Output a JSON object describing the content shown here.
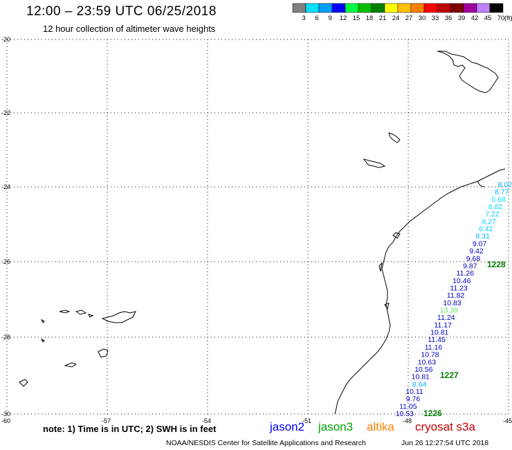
{
  "header": {
    "title": "12:00 – 23:59 UTC 06/25/2018",
    "subtitle": "12 hour collection of altimeter wave heights"
  },
  "legend": {
    "unit": "(ft)",
    "bins": [
      {
        "label": "3",
        "color": "#808080"
      },
      {
        "label": "6",
        "color": "#00e0ff"
      },
      {
        "label": "9",
        "color": "#00a0ff"
      },
      {
        "label": "12",
        "color": "#0000ff"
      },
      {
        "label": "15",
        "color": "#00ff40"
      },
      {
        "label": "18",
        "color": "#00c000"
      },
      {
        "label": "21",
        "color": "#008000"
      },
      {
        "label": "24",
        "color": "#ffff00"
      },
      {
        "label": "27",
        "color": "#ffc000"
      },
      {
        "label": "30",
        "color": "#ff8000"
      },
      {
        "label": "33",
        "color": "#ff0000"
      },
      {
        "label": "36",
        "color": "#c00000"
      },
      {
        "label": "39",
        "color": "#800000"
      },
      {
        "label": "42",
        "color": "#a000a0"
      },
      {
        "label": "45",
        "color": "#c080ff"
      },
      {
        "label": "70",
        "color": "#000000"
      }
    ]
  },
  "axes": {
    "lat_labels": [
      "-20",
      "-22",
      "-24",
      "-26",
      "-28",
      "-30"
    ],
    "lon_labels": [
      "-60",
      "-57",
      "-54",
      "-51",
      "-48",
      "-45"
    ]
  },
  "track_values": [
    {
      "text": "8.02",
      "color": "#00b0ff"
    },
    {
      "text": "8.77",
      "color": "#00b0ff"
    },
    {
      "text": "5.68",
      "color": "#00e0ff"
    },
    {
      "text": "6.82",
      "color": "#00e0ff"
    },
    {
      "text": "7.22",
      "color": "#00c8ff"
    },
    {
      "text": "6.27",
      "color": "#00c8ff"
    },
    {
      "text": "6.42",
      "color": "#00c8ff"
    },
    {
      "text": "8.31",
      "color": "#00b0ff"
    },
    {
      "text": "9.07",
      "color": "#0000c0"
    },
    {
      "text": "9.42",
      "color": "#0000c0"
    },
    {
      "text": "9.68",
      "color": "#0000c0"
    },
    {
      "text": "9.87",
      "color": "#0000c0"
    },
    {
      "text": "11.26",
      "color": "#0000c0"
    },
    {
      "text": "10.46",
      "color": "#0000c0"
    },
    {
      "text": "11.23",
      "color": "#0000c0"
    },
    {
      "text": "11.82",
      "color": "#0000c0"
    },
    {
      "text": "10.83",
      "color": "#0000c0"
    },
    {
      "text": "13.39",
      "color": "#60e060"
    },
    {
      "text": "11.24",
      "color": "#0000c0"
    },
    {
      "text": "11.17",
      "color": "#0000c0"
    },
    {
      "text": "10.81",
      "color": "#0000c0"
    },
    {
      "text": "11.45",
      "color": "#0000c0"
    },
    {
      "text": "11.16",
      "color": "#0000c0"
    },
    {
      "text": "10.78",
      "color": "#0000c0"
    },
    {
      "text": "10.63",
      "color": "#0000c0"
    },
    {
      "text": "10.56",
      "color": "#0000c0"
    },
    {
      "text": "10.81",
      "color": "#0000c0"
    },
    {
      "text": "8.64",
      "color": "#00b0ff"
    },
    {
      "text": "10.11",
      "color": "#0000c0"
    },
    {
      "text": "9.76",
      "color": "#0000c0"
    },
    {
      "text": "11.05",
      "color": "#0000c0"
    },
    {
      "text": "10.53",
      "color": "#0000c0"
    }
  ],
  "time_tags": [
    {
      "text": "1228",
      "color": "#008000"
    },
    {
      "text": "1227",
      "color": "#008000"
    },
    {
      "text": "1226",
      "color": "#008000"
    }
  ],
  "footer": {
    "note": "note: 1) Time is in UTC; 2) SWH is in feet",
    "satellites": [
      {
        "name": "jason2",
        "color": "#0000ff"
      },
      {
        "name": "jason3",
        "color": "#00a000"
      },
      {
        "name": "altika",
        "color": "#ff8000"
      },
      {
        "name": "cryosat s3a",
        "color": "#c00000"
      }
    ],
    "credit": "NOAA/NESDIS Center for Satellite Applications and Research",
    "timestamp": "Jun 26 12:27:54 UTC 2018"
  }
}
